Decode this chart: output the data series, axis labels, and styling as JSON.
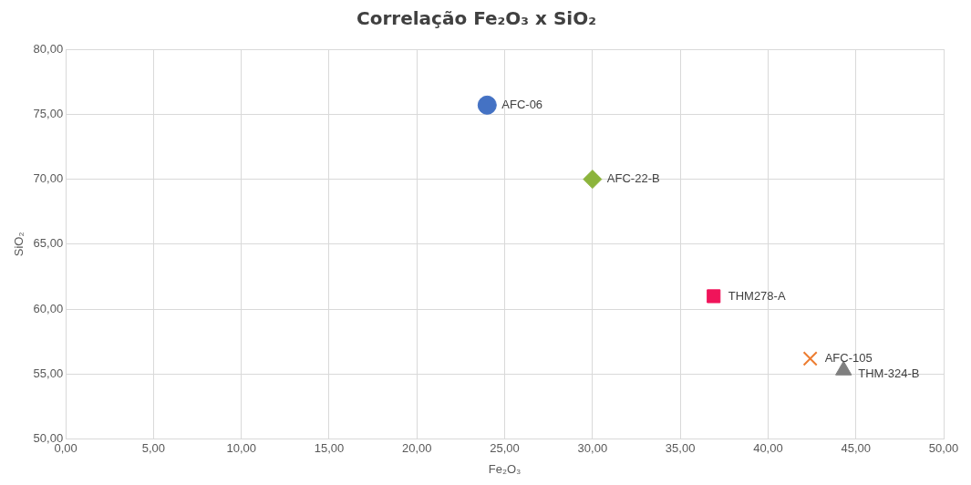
{
  "chart_data": {
    "type": "scatter",
    "title": "Correlação Fe₂O₃ x SiO₂",
    "xlabel": "Fe₂O₃",
    "ylabel": "SiO₂",
    "xlim": [
      0,
      50
    ],
    "ylim": [
      50,
      80
    ],
    "xticks": [
      {
        "value": 0,
        "label": "0,00"
      },
      {
        "value": 5,
        "label": "5,00"
      },
      {
        "value": 10,
        "label": "10,00"
      },
      {
        "value": 15,
        "label": "15,00"
      },
      {
        "value": 20,
        "label": "20,00"
      },
      {
        "value": 25,
        "label": "25,00"
      },
      {
        "value": 30,
        "label": "30,00"
      },
      {
        "value": 35,
        "label": "35,00"
      },
      {
        "value": 40,
        "label": "40,00"
      },
      {
        "value": 45,
        "label": "45,00"
      },
      {
        "value": 50,
        "label": "50,00"
      }
    ],
    "yticks": [
      {
        "value": 50,
        "label": "50,00"
      },
      {
        "value": 55,
        "label": "55,00"
      },
      {
        "value": 60,
        "label": "60,00"
      },
      {
        "value": 65,
        "label": "65,00"
      },
      {
        "value": 70,
        "label": "70,00"
      },
      {
        "value": 75,
        "label": "75,00"
      },
      {
        "value": 80,
        "label": "80,00"
      }
    ],
    "grid": true,
    "legend": false,
    "series": [
      {
        "name": "AFC-06",
        "color": "#4472c4",
        "marker": "circle",
        "x": [
          24.0
        ],
        "values": [
          75.7
        ]
      },
      {
        "name": "AFC-22-B",
        "color": "#8cb43c",
        "marker": "diamond",
        "x": [
          30.0
        ],
        "values": [
          70.0
        ]
      },
      {
        "name": "THM278-A",
        "color": "#f0145a",
        "marker": "square",
        "x": [
          36.9
        ],
        "values": [
          61.0
        ]
      },
      {
        "name": "AFC-105",
        "color": "#ed7d31",
        "marker": "cross",
        "x": [
          42.4
        ],
        "values": [
          56.2
        ]
      },
      {
        "name": "THM-324-B",
        "color": "#7f7f7f",
        "marker": "triangle",
        "x": [
          44.3
        ],
        "values": [
          55.3
        ]
      }
    ]
  }
}
